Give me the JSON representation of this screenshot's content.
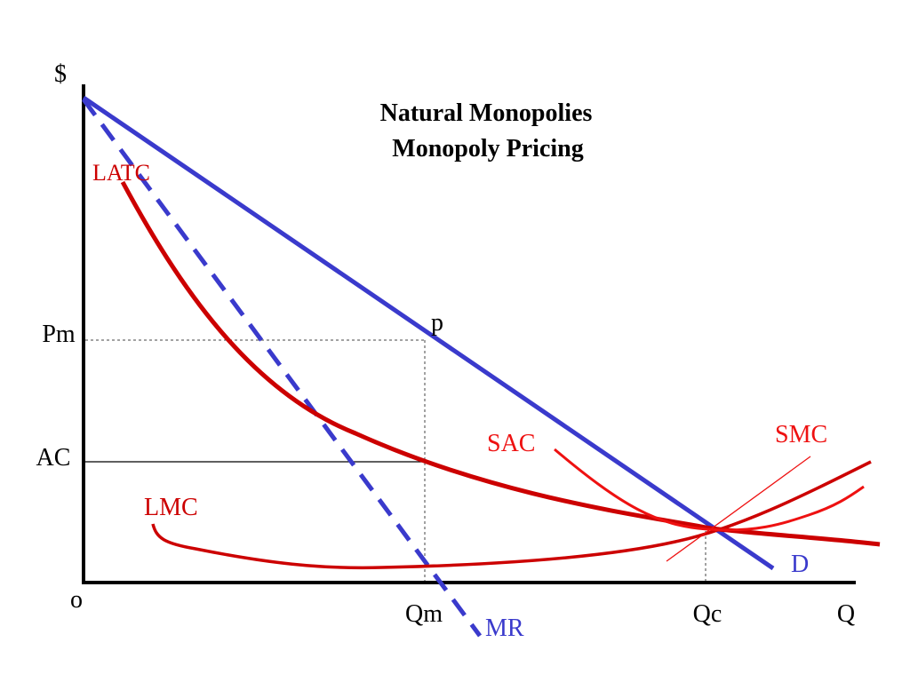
{
  "title": {
    "line1": "Natural Monopolies",
    "line2": "Monopoly Pricing"
  },
  "axes": {
    "y_label": "$",
    "x_label": "Q",
    "origin_label": "o"
  },
  "price_labels": {
    "pm": "Pm",
    "ac": "AC"
  },
  "quantity_labels": {
    "qm": "Qm",
    "qc": "Qc"
  },
  "point_labels": {
    "p": "p"
  },
  "curves": {
    "latc": "LATC",
    "lmc": "LMC",
    "sac": "SAC",
    "smc": "SMC",
    "d": "D",
    "mr": "MR"
  },
  "colors": {
    "cost_curves": "#cc0000",
    "demand_curves": "#3a3acc",
    "axes": "#000000"
  }
}
